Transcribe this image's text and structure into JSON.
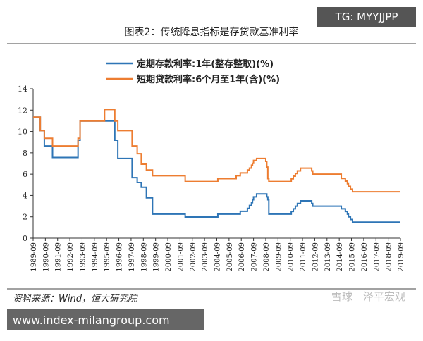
{
  "chart_data": {
    "type": "line",
    "title": "图表2：传统降息指标是存贷款基准利率",
    "step": true,
    "x": [
      "1989-09",
      "1990-04",
      "1990-08",
      "1991-04",
      "1993-05",
      "1993-07",
      "1995-07",
      "1996-05",
      "1996-08",
      "1997-10",
      "1998-03",
      "1998-07",
      "1998-12",
      "1999-06",
      "2002-02",
      "2004-10",
      "2006-04",
      "2006-08",
      "2007-03",
      "2007-05",
      "2007-07",
      "2007-08",
      "2007-09",
      "2007-12",
      "2008-09",
      "2008-10",
      "2008-11",
      "2008-12",
      "2010-10",
      "2010-12",
      "2011-02",
      "2011-04",
      "2011-07",
      "2012-06",
      "2012-07",
      "2014-11",
      "2015-03",
      "2015-05",
      "2015-06",
      "2015-08",
      "2015-10",
      "2019-09"
    ],
    "series": [
      {
        "name": "定期存款利率:1年(整存整取)(%)",
        "color": "#2e75b6",
        "values": [
          11.34,
          10.08,
          8.64,
          7.56,
          9.18,
          10.98,
          10.98,
          9.18,
          7.47,
          5.67,
          5.22,
          4.77,
          3.78,
          2.25,
          1.98,
          2.25,
          2.25,
          2.52,
          2.79,
          3.06,
          3.33,
          3.6,
          3.87,
          4.14,
          4.14,
          3.87,
          3.6,
          2.25,
          2.5,
          2.75,
          3.0,
          3.25,
          3.5,
          3.25,
          3.0,
          2.75,
          2.5,
          2.25,
          2.0,
          1.75,
          1.5,
          1.5
        ]
      },
      {
        "name": "短期贷款利率:6个月至1年(含)(%)",
        "color": "#ed7d31",
        "values": [
          11.34,
          10.08,
          9.36,
          8.64,
          9.36,
          10.98,
          12.06,
          10.98,
          10.08,
          8.64,
          7.92,
          6.93,
          6.39,
          5.85,
          5.31,
          5.58,
          5.85,
          6.12,
          6.39,
          6.57,
          6.84,
          7.02,
          7.29,
          7.47,
          7.2,
          6.66,
          5.58,
          5.31,
          5.56,
          5.81,
          6.06,
          6.31,
          6.56,
          6.31,
          6.0,
          5.6,
          5.35,
          5.1,
          4.85,
          4.6,
          4.35,
          4.35
        ]
      }
    ],
    "xlim": [
      "1989-09",
      "2019-09"
    ],
    "xticks": [
      "1989-09",
      "1990-09",
      "1991-09",
      "1992-09",
      "1993-09",
      "1994-09",
      "1995-09",
      "1996-09",
      "1997-09",
      "1998-09",
      "1999-09",
      "2000-09",
      "2001-09",
      "2002-09",
      "2003-09",
      "2004-09",
      "2005-09",
      "2006-09",
      "2007-09",
      "2008-09",
      "2009-09",
      "2010-09",
      "2011-09",
      "2012-09",
      "2013-09",
      "2014-09",
      "2015-09",
      "2016-09",
      "2017-09",
      "2018-09",
      "2019-09"
    ],
    "ylim": [
      0,
      14
    ],
    "yticks": [
      0,
      2,
      4,
      6,
      8,
      10,
      12,
      14
    ],
    "source": "资料来源：Wind，恒大研究院"
  },
  "overlays": [
    "TG: MYYJJPP",
    "www.index-milangroup.com",
    "雪球",
    "泽平宏观"
  ]
}
